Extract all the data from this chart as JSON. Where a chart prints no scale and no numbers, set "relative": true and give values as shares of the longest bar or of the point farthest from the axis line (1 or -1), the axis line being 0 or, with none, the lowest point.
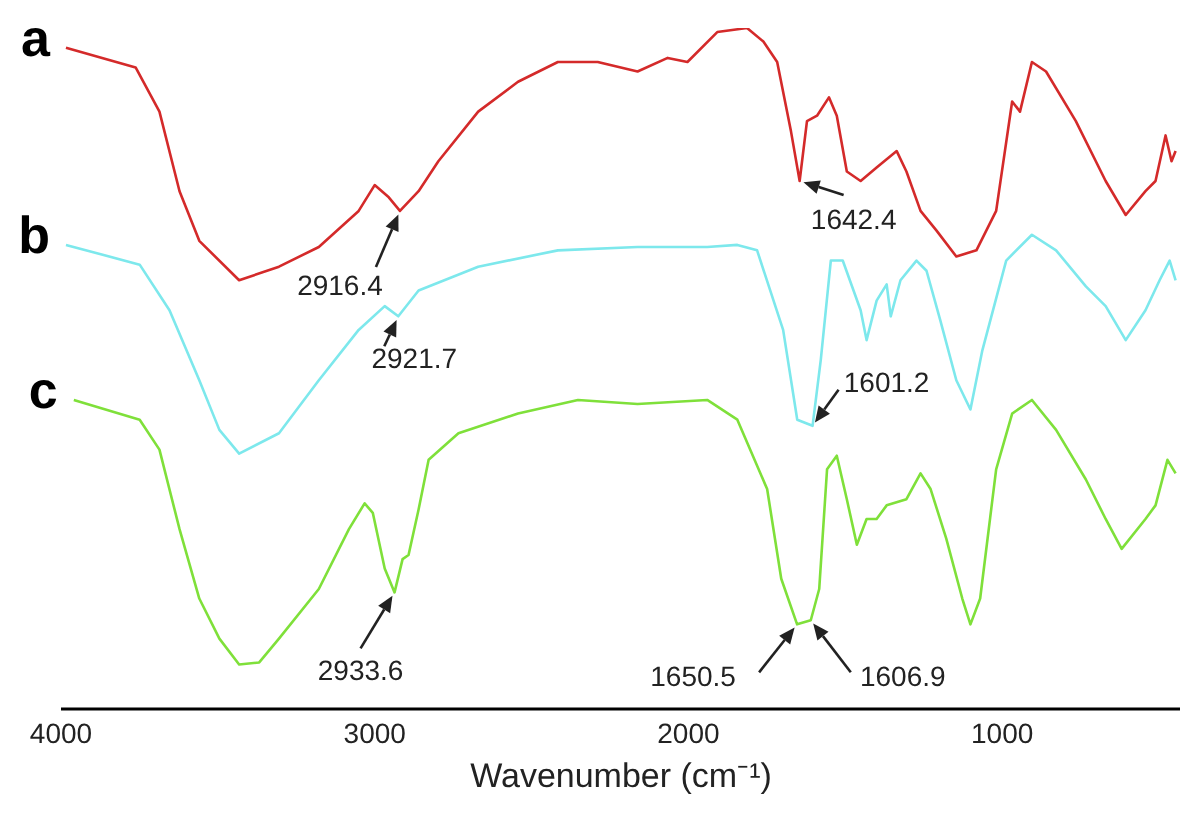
{
  "chart_data": {
    "type": "line",
    "relative": true,
    "xlabel": "Wavenumber (cm⁻¹)",
    "xlim": [
      4000,
      430
    ],
    "xticks": [
      4000,
      3000,
      2000,
      1000
    ],
    "grid": false,
    "marker": "none",
    "line_style": "solid",
    "series": [
      {
        "name": "a",
        "color": "#d42a2a",
        "x": [
          3981,
          3759,
          3683,
          3619,
          3556,
          3429,
          3302,
          3175,
          3048,
          2997,
          2952,
          2916.4,
          2857,
          2794,
          2667,
          2540,
          2413,
          2286,
          2159,
          2063,
          2000,
          1905,
          1810,
          1758,
          1714,
          1670,
          1642.4,
          1619,
          1587,
          1549,
          1524,
          1492,
          1448,
          1397,
          1333,
          1302,
          1257,
          1206,
          1143,
          1079,
          1016,
          965,
          940,
          902,
          857,
          762,
          667,
          603,
          540,
          508,
          476,
          457,
          444
        ],
        "values": [
          0.971,
          0.942,
          0.877,
          0.76,
          0.687,
          0.629,
          0.649,
          0.678,
          0.731,
          0.769,
          0.751,
          0.731,
          0.76,
          0.804,
          0.877,
          0.921,
          0.95,
          0.95,
          0.936,
          0.956,
          0.95,
          0.994,
          1,
          0.98,
          0.95,
          0.848,
          0.775,
          0.863,
          0.871,
          0.898,
          0.871,
          0.789,
          0.775,
          0.795,
          0.819,
          0.789,
          0.731,
          0.702,
          0.664,
          0.673,
          0.731,
          0.892,
          0.877,
          0.95,
          0.936,
          0.863,
          0.775,
          0.725,
          0.76,
          0.775,
          0.842,
          0.804,
          0.819
        ]
      },
      {
        "name": "b",
        "color": "#7de8ec",
        "x": [
          3981,
          3746,
          3651,
          3556,
          3492,
          3429,
          3302,
          3175,
          3048,
          2965,
          2921.7,
          2857,
          2667,
          2413,
          2159,
          1937,
          1841,
          1778,
          1695,
          1650,
          1601.2,
          1575,
          1543,
          1505,
          1448,
          1429,
          1397,
          1365,
          1352,
          1321,
          1270,
          1238,
          1194,
          1143,
          1098,
          1060,
          984,
          902,
          825,
          730,
          667,
          603,
          540,
          495,
          463,
          444
        ],
        "values": [
          0.681,
          0.652,
          0.585,
          0.482,
          0.409,
          0.374,
          0.404,
          0.482,
          0.556,
          0.591,
          0.576,
          0.614,
          0.649,
          0.673,
          0.678,
          0.678,
          0.681,
          0.673,
          0.556,
          0.424,
          0.415,
          0.512,
          0.658,
          0.658,
          0.585,
          0.541,
          0.599,
          0.623,
          0.576,
          0.629,
          0.658,
          0.643,
          0.57,
          0.482,
          0.439,
          0.526,
          0.658,
          0.696,
          0.673,
          0.62,
          0.591,
          0.541,
          0.585,
          0.629,
          0.658,
          0.629
        ]
      },
      {
        "name": "c",
        "color": "#7fe03a",
        "x": [
          3956,
          3746,
          3683,
          3619,
          3556,
          3492,
          3429,
          3365,
          3302,
          3175,
          3079,
          3029,
          3003,
          2965,
          2933.6,
          2908,
          2889,
          2857,
          2825,
          2730,
          2540,
          2349,
          2159,
          1937,
          1841,
          1746,
          1701,
          1650.5,
          1606.9,
          1580,
          1555,
          1524,
          1492,
          1460,
          1429,
          1397,
          1365,
          1302,
          1257,
          1225,
          1175,
          1124,
          1098,
          1067,
          1016,
          965,
          902,
          825,
          730,
          667,
          616,
          540,
          508,
          470,
          444
        ],
        "values": [
          0.453,
          0.424,
          0.38,
          0.263,
          0.161,
          0.102,
          0.064,
          0.067,
          0.102,
          0.175,
          0.263,
          0.301,
          0.287,
          0.205,
          0.17,
          0.219,
          0.225,
          0.292,
          0.365,
          0.404,
          0.433,
          0.453,
          0.447,
          0.453,
          0.424,
          0.322,
          0.19,
          0.123,
          0.129,
          0.175,
          0.351,
          0.371,
          0.307,
          0.24,
          0.278,
          0.278,
          0.298,
          0.307,
          0.345,
          0.322,
          0.249,
          0.161,
          0.123,
          0.161,
          0.351,
          0.433,
          0.453,
          0.409,
          0.336,
          0.278,
          0.234,
          0.278,
          0.298,
          0.365,
          0.345
        ]
      }
    ],
    "annotations": [
      {
        "text": "2916.4",
        "x": 2916.4,
        "y": 0.731
      },
      {
        "text": "1642.4",
        "x": 1642.4,
        "y": 0.775
      },
      {
        "text": "2921.7",
        "x": 2921.7,
        "y": 0.576
      },
      {
        "text": "1601.2",
        "x": 1601.2,
        "y": 0.415
      },
      {
        "text": "2933.6",
        "x": 2933.6,
        "y": 0.17
      },
      {
        "text": "1650.5",
        "x": 1650.5,
        "y": 0.123
      },
      {
        "text": "1606.9",
        "x": 1606.9,
        "y": 0.129
      }
    ]
  }
}
